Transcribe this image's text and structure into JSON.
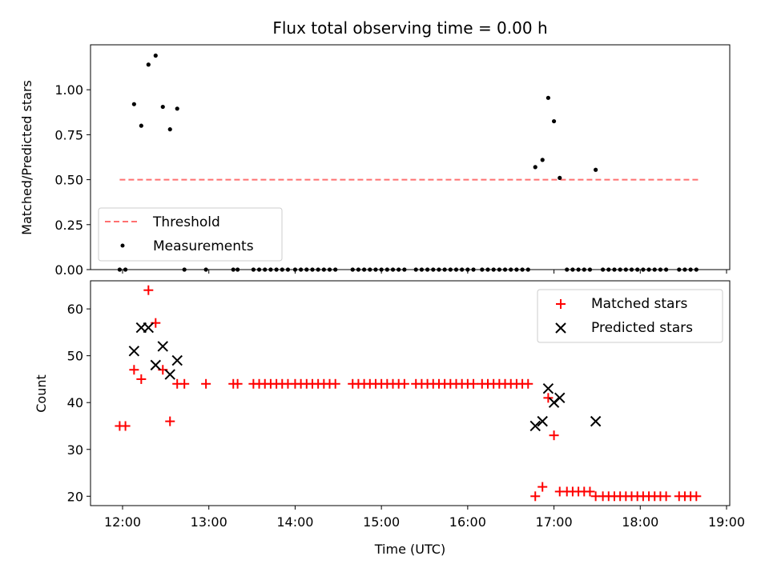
{
  "chart_data": [
    {
      "type": "scatter",
      "title": "Flux total observing time = 0.00 h",
      "xlabel": "",
      "ylabel": "Matched/Predicted stars",
      "ylim": [
        0,
        1.25
      ],
      "yticks": [
        "0.00",
        "0.25",
        "0.50",
        "0.75",
        "1.00"
      ],
      "xlim": [
        "11:50",
        "19:00"
      ],
      "legend_placement": "lower-left",
      "threshold": {
        "name": "Threshold",
        "y": 0.5,
        "x_start": "11:58",
        "x_end": "18:42",
        "color": "#ff7070",
        "style": "dashed"
      },
      "series": [
        {
          "name": "Measurements",
          "color": "#000000",
          "marker": "dot",
          "x": [
            "11:58",
            "12:02",
            "12:08",
            "12:13",
            "12:18",
            "12:23",
            "12:28",
            "12:33",
            "12:38",
            "12:43",
            "12:58",
            "13:17",
            "13:20",
            "13:31",
            "13:35",
            "13:39",
            "13:43",
            "13:47",
            "13:51",
            "13:55",
            "14:00",
            "14:04",
            "14:08",
            "14:12",
            "14:16",
            "14:20",
            "14:24",
            "14:28",
            "14:40",
            "14:44",
            "14:48",
            "14:52",
            "14:56",
            "15:00",
            "15:04",
            "15:08",
            "15:12",
            "15:16",
            "15:24",
            "15:28",
            "15:32",
            "15:36",
            "15:40",
            "15:44",
            "15:48",
            "15:52",
            "15:56",
            "16:00",
            "16:04",
            "16:10",
            "16:14",
            "16:18",
            "16:22",
            "16:26",
            "16:30",
            "16:34",
            "16:38",
            "16:42",
            "16:47",
            "16:52",
            "16:56",
            "17:00",
            "17:04",
            "17:09",
            "17:13",
            "17:17",
            "17:21",
            "17:25",
            "17:29",
            "17:34",
            "17:38",
            "17:42",
            "17:46",
            "17:50",
            "17:54",
            "17:58",
            "18:02",
            "18:06",
            "18:10",
            "18:14",
            "18:18",
            "18:27",
            "18:31",
            "18:35",
            "18:39"
          ],
          "y": [
            0.0,
            0.0,
            0.92,
            0.8,
            1.14,
            1.19,
            0.905,
            0.78,
            0.895,
            0.0,
            0.0,
            0.0,
            0.0,
            0.0,
            0.0,
            0.0,
            0.0,
            0.0,
            0.0,
            0.0,
            0.0,
            0.0,
            0.0,
            0.0,
            0.0,
            0.0,
            0.0,
            0.0,
            0.0,
            0.0,
            0.0,
            0.0,
            0.0,
            0.0,
            0.0,
            0.0,
            0.0,
            0.0,
            0.0,
            0.0,
            0.0,
            0.0,
            0.0,
            0.0,
            0.0,
            0.0,
            0.0,
            0.0,
            0.0,
            0.0,
            0.0,
            0.0,
            0.0,
            0.0,
            0.0,
            0.0,
            0.0,
            0.0,
            0.57,
            0.61,
            0.955,
            0.825,
            0.51,
            0.0,
            0.0,
            0.0,
            0.0,
            0.0,
            0.555,
            0.0,
            0.0,
            0.0,
            0.0,
            0.0,
            0.0,
            0.0,
            0.0,
            0.0,
            0.0,
            0.0,
            0.0,
            0.0,
            0.0,
            0.0,
            0.0
          ]
        }
      ]
    },
    {
      "type": "scatter",
      "title": "",
      "xlabel": "Time (UTC)",
      "ylabel": "Count",
      "ylim": [
        18,
        66
      ],
      "yticks": [
        "20",
        "30",
        "40",
        "50",
        "60"
      ],
      "xlim": [
        "11:50",
        "19:00"
      ],
      "xticks": [
        "12:00",
        "13:00",
        "14:00",
        "15:00",
        "16:00",
        "17:00",
        "18:00",
        "19:00"
      ],
      "legend_placement": "upper-right",
      "series": [
        {
          "name": "Matched stars",
          "color": "#ff0000",
          "marker": "plus",
          "x": [
            "11:58",
            "12:02",
            "12:08",
            "12:13",
            "12:18",
            "12:23",
            "12:28",
            "12:33",
            "12:38",
            "12:43",
            "12:58",
            "13:17",
            "13:20",
            "13:31",
            "13:35",
            "13:39",
            "13:43",
            "13:47",
            "13:51",
            "13:55",
            "14:00",
            "14:04",
            "14:08",
            "14:12",
            "14:16",
            "14:20",
            "14:24",
            "14:28",
            "14:40",
            "14:44",
            "14:48",
            "14:52",
            "14:56",
            "15:00",
            "15:04",
            "15:08",
            "15:12",
            "15:16",
            "15:24",
            "15:28",
            "15:32",
            "15:36",
            "15:40",
            "15:44",
            "15:48",
            "15:52",
            "15:56",
            "16:00",
            "16:04",
            "16:10",
            "16:14",
            "16:18",
            "16:22",
            "16:26",
            "16:30",
            "16:34",
            "16:38",
            "16:42",
            "16:47",
            "16:52",
            "16:56",
            "17:00",
            "17:04",
            "17:09",
            "17:13",
            "17:17",
            "17:21",
            "17:25",
            "17:29",
            "17:34",
            "17:38",
            "17:42",
            "17:46",
            "17:50",
            "17:54",
            "17:58",
            "18:02",
            "18:06",
            "18:10",
            "18:14",
            "18:18",
            "18:27",
            "18:31",
            "18:35",
            "18:39"
          ],
          "y": [
            35,
            35,
            47,
            45,
            64,
            57,
            47,
            36,
            44,
            44,
            44,
            44,
            44,
            44,
            44,
            44,
            44,
            44,
            44,
            44,
            44,
            44,
            44,
            44,
            44,
            44,
            44,
            44,
            44,
            44,
            44,
            44,
            44,
            44,
            44,
            44,
            44,
            44,
            44,
            44,
            44,
            44,
            44,
            44,
            44,
            44,
            44,
            44,
            44,
            44,
            44,
            44,
            44,
            44,
            44,
            44,
            44,
            44,
            20,
            22,
            41,
            33,
            21,
            21,
            21,
            21,
            21,
            21,
            20,
            20,
            20,
            20,
            20,
            20,
            20,
            20,
            20,
            20,
            20,
            20,
            20,
            20,
            20,
            20,
            20
          ]
        },
        {
          "name": "Predicted stars",
          "color": "#000000",
          "marker": "x",
          "x": [
            "12:08",
            "12:13",
            "12:18",
            "12:23",
            "12:28",
            "12:33",
            "12:38",
            "16:47",
            "16:52",
            "16:56",
            "17:00",
            "17:04",
            "17:29"
          ],
          "y": [
            51,
            56,
            56,
            48,
            52,
            46,
            49,
            35,
            36,
            43,
            40,
            41,
            36
          ]
        }
      ]
    }
  ]
}
